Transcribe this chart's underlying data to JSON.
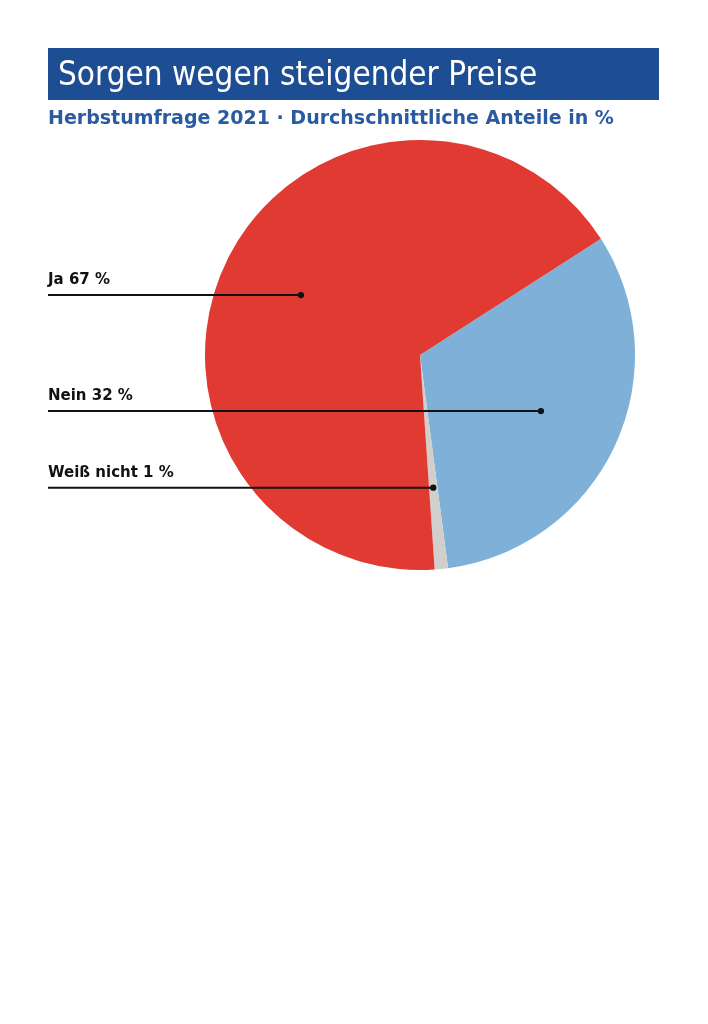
{
  "chart_data": {
    "type": "pie",
    "title": "Sorgen wegen steigender Preise",
    "subtitle": "Herbstumfrage 2021 · Durchschnittliche Anteile in %",
    "categories": [
      "Nein",
      "Weiß nicht",
      "Ja"
    ],
    "values": [
      32,
      1,
      67
    ],
    "colors": [
      "#7fb0d8",
      "#d0cfcb",
      "#e03a33"
    ],
    "value_labels": [
      "32 %",
      "1 %",
      "67 %"
    ]
  }
}
